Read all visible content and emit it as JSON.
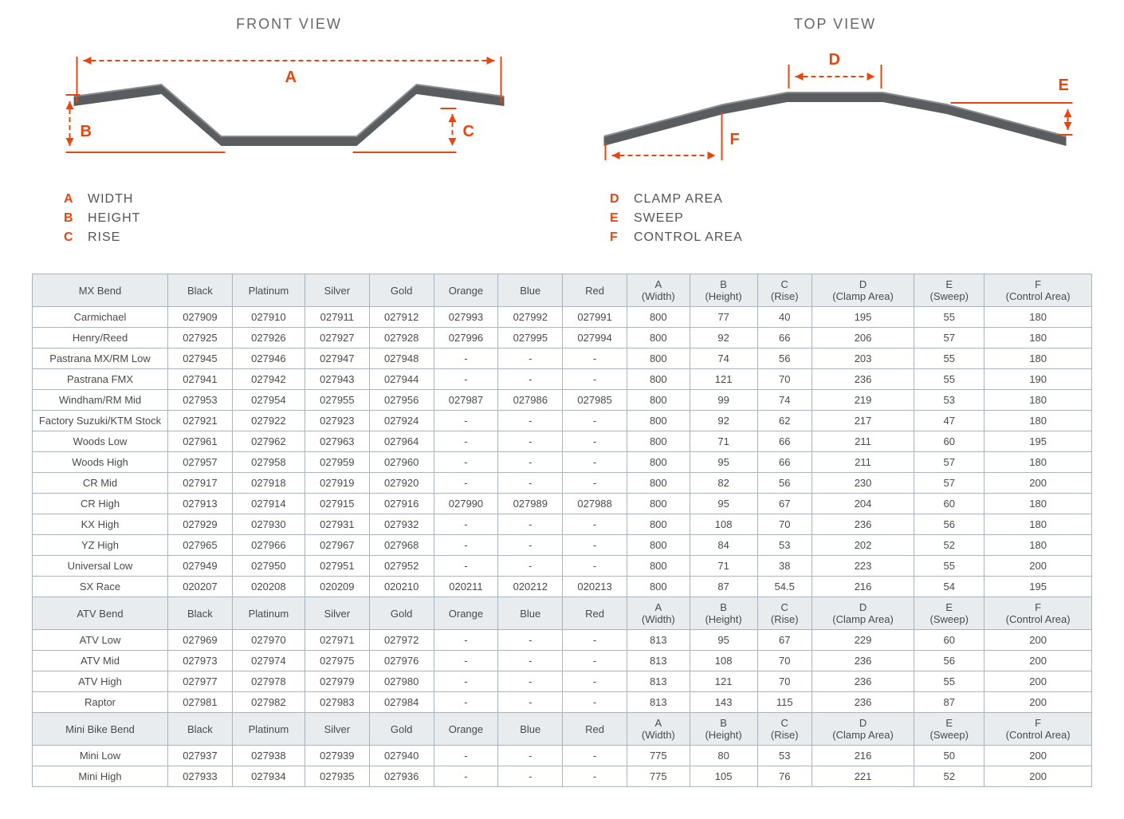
{
  "accent_color": "#e84610",
  "bar_fill": "#5a5d60",
  "bar_highlight": "#8a8d90",
  "table_border": "#aab4bd",
  "header_bg": "#e8ecef",
  "front_view": {
    "title": "FRONT VIEW",
    "legend": [
      {
        "letter": "A",
        "label": "WIDTH"
      },
      {
        "letter": "B",
        "label": "HEIGHT"
      },
      {
        "letter": "C",
        "label": "RISE"
      }
    ]
  },
  "top_view": {
    "title": "TOP VIEW",
    "legend": [
      {
        "letter": "D",
        "label": "CLAMP AREA"
      },
      {
        "letter": "E",
        "label": "SWEEP"
      },
      {
        "letter": "F",
        "label": "CONTROL AREA"
      }
    ]
  },
  "columns": [
    "Black",
    "Platinum",
    "Silver",
    "Gold",
    "Orange",
    "Blue",
    "Red",
    "A\n(Width)",
    "B\n(Height)",
    "C\n(Rise)",
    "D\n(Clamp Area)",
    "E\n(Sweep)",
    "F\n(Control Area)"
  ],
  "sections": [
    {
      "header": "MX Bend",
      "rows": [
        [
          "Carmichael",
          "027909",
          "027910",
          "027911",
          "027912",
          "027993",
          "027992",
          "027991",
          "800",
          "77",
          "40",
          "195",
          "55",
          "180"
        ],
        [
          "Henry/Reed",
          "027925",
          "027926",
          "027927",
          "027928",
          "027996",
          "027995",
          "027994",
          "800",
          "92",
          "66",
          "206",
          "57",
          "180"
        ],
        [
          "Pastrana MX/RM Low",
          "027945",
          "027946",
          "027947",
          "027948",
          "-",
          "-",
          "-",
          "800",
          "74",
          "56",
          "203",
          "55",
          "180"
        ],
        [
          "Pastrana FMX",
          "027941",
          "027942",
          "027943",
          "027944",
          "-",
          "-",
          "-",
          "800",
          "121",
          "70",
          "236",
          "55",
          "190"
        ],
        [
          "Windham/RM Mid",
          "027953",
          "027954",
          "027955",
          "027956",
          "027987",
          "027986",
          "027985",
          "800",
          "99",
          "74",
          "219",
          "53",
          "180"
        ],
        [
          "Factory Suzuki/KTM Stock",
          "027921",
          "027922",
          "027923",
          "027924",
          "-",
          "-",
          "-",
          "800",
          "92",
          "62",
          "217",
          "47",
          "180"
        ],
        [
          "Woods Low",
          "027961",
          "027962",
          "027963",
          "027964",
          "-",
          "-",
          "-",
          "800",
          "71",
          "66",
          "211",
          "60",
          "195"
        ],
        [
          "Woods High",
          "027957",
          "027958",
          "027959",
          "027960",
          "-",
          "-",
          "-",
          "800",
          "95",
          "66",
          "211",
          "57",
          "180"
        ],
        [
          "CR Mid",
          "027917",
          "027918",
          "027919",
          "027920",
          "-",
          "-",
          "-",
          "800",
          "82",
          "56",
          "230",
          "57",
          "200"
        ],
        [
          "CR High",
          "027913",
          "027914",
          "027915",
          "027916",
          "027990",
          "027989",
          "027988",
          "800",
          "95",
          "67",
          "204",
          "60",
          "180"
        ],
        [
          "KX High",
          "027929",
          "027930",
          "027931",
          "027932",
          "-",
          "-",
          "-",
          "800",
          "108",
          "70",
          "236",
          "56",
          "180"
        ],
        [
          "YZ High",
          "027965",
          "027966",
          "027967",
          "027968",
          "-",
          "-",
          "-",
          "800",
          "84",
          "53",
          "202",
          "52",
          "180"
        ],
        [
          "Universal Low",
          "027949",
          "027950",
          "027951",
          "027952",
          "-",
          "-",
          "-",
          "800",
          "71",
          "38",
          "223",
          "55",
          "200"
        ],
        [
          "SX Race",
          "020207",
          "020208",
          "020209",
          "020210",
          "020211",
          "020212",
          "020213",
          "800",
          "87",
          "54.5",
          "216",
          "54",
          "195"
        ]
      ]
    },
    {
      "header": "ATV Bend",
      "rows": [
        [
          "ATV Low",
          "027969",
          "027970",
          "027971",
          "027972",
          "-",
          "-",
          "-",
          "813",
          "95",
          "67",
          "229",
          "60",
          "200"
        ],
        [
          "ATV Mid",
          "027973",
          "027974",
          "027975",
          "027976",
          "-",
          "-",
          "-",
          "813",
          "108",
          "70",
          "236",
          "56",
          "200"
        ],
        [
          "ATV High",
          "027977",
          "027978",
          "027979",
          "027980",
          "-",
          "-",
          "-",
          "813",
          "121",
          "70",
          "236",
          "55",
          "200"
        ],
        [
          "Raptor",
          "027981",
          "027982",
          "027983",
          "027984",
          "-",
          "-",
          "-",
          "813",
          "143",
          "115",
          "236",
          "87",
          "200"
        ]
      ]
    },
    {
      "header": "Mini Bike Bend",
      "rows": [
        [
          "Mini Low",
          "027937",
          "027938",
          "027939",
          "027940",
          "-",
          "-",
          "-",
          "775",
          "80",
          "53",
          "216",
          "50",
          "200"
        ],
        [
          "Mini High",
          "027933",
          "027934",
          "027935",
          "027936",
          "-",
          "-",
          "-",
          "775",
          "105",
          "76",
          "221",
          "52",
          "200"
        ]
      ]
    }
  ]
}
